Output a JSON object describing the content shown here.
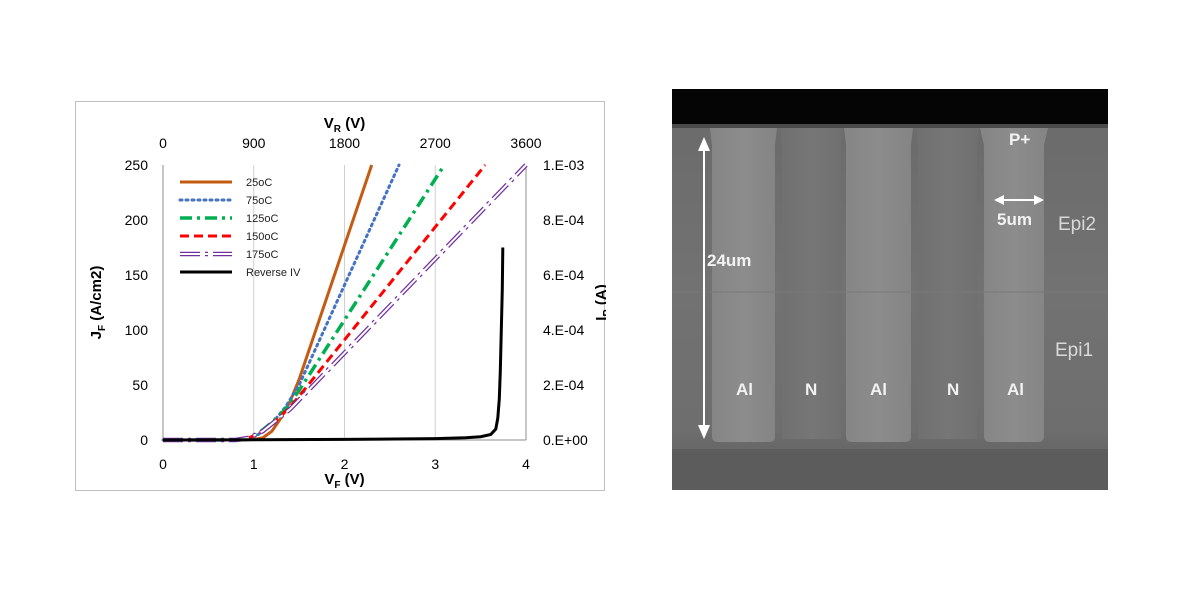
{
  "chart_data": {
    "type": "line",
    "x_primary": {
      "label_main": "V",
      "label_sub": "F",
      "label_unit": " (V)",
      "ticks": [
        "0",
        "1",
        "2",
        "3",
        "4"
      ],
      "range": [
        0,
        4
      ]
    },
    "x_secondary": {
      "label_main": "V",
      "label_sub": "R",
      "label_unit": " (V)",
      "ticks": [
        "0",
        "900",
        "1800",
        "2700",
        "3600"
      ],
      "range": [
        0,
        3600
      ]
    },
    "y_primary": {
      "label_main": "J",
      "label_sub": "F",
      "label_unit": " (A/cm2)",
      "ticks": [
        "0",
        "50",
        "100",
        "150",
        "200",
        "250"
      ],
      "range": [
        0,
        250
      ]
    },
    "y_secondary": {
      "label_main": "I",
      "label_sub": "R",
      "label_unit": " (A)",
      "ticks": [
        "0.E+00",
        "2.E-04",
        "4.E-04",
        "6.E-04",
        "8.E-04",
        "1.E-03"
      ],
      "range": [
        0,
        0.001
      ]
    },
    "grid": "vertical",
    "legend_position": "top-left",
    "series": [
      {
        "name": "25oC",
        "color": "#c55a11",
        "dash": "solid",
        "axis": "forward",
        "points": [
          [
            0,
            0
          ],
          [
            0.9,
            0
          ],
          [
            1.0,
            0.5
          ],
          [
            1.1,
            2
          ],
          [
            1.2,
            8
          ],
          [
            1.3,
            20
          ],
          [
            1.4,
            35
          ],
          [
            1.5,
            55
          ],
          [
            2.3,
            250
          ]
        ]
      },
      {
        "name": "75oC",
        "color": "#4472c4",
        "dash": "dot",
        "axis": "forward",
        "points": [
          [
            0,
            0
          ],
          [
            0.85,
            0
          ],
          [
            0.95,
            1
          ],
          [
            1.05,
            5
          ],
          [
            1.2,
            15
          ],
          [
            1.35,
            30
          ],
          [
            1.5,
            50
          ],
          [
            2.6,
            250
          ]
        ]
      },
      {
        "name": "125oC",
        "color": "#00b050",
        "dash": "dashdot",
        "axis": "forward",
        "points": [
          [
            0,
            0
          ],
          [
            0.85,
            0
          ],
          [
            0.95,
            1.5
          ],
          [
            1.05,
            6
          ],
          [
            1.2,
            16
          ],
          [
            1.35,
            28
          ],
          [
            1.5,
            45
          ],
          [
            3.1,
            250
          ]
        ]
      },
      {
        "name": "150oC",
        "color": "#ff0000",
        "dash": "dash",
        "axis": "forward",
        "points": [
          [
            0,
            0
          ],
          [
            0.8,
            0
          ],
          [
            0.95,
            2
          ],
          [
            1.1,
            8
          ],
          [
            1.25,
            18
          ],
          [
            1.4,
            30
          ],
          [
            1.55,
            45
          ],
          [
            3.55,
            250
          ]
        ]
      },
      {
        "name": "175oC",
        "color": "#7030a0",
        "dash": "hollow",
        "axis": "forward",
        "points": [
          [
            0,
            0
          ],
          [
            0.8,
            0
          ],
          [
            0.95,
            2
          ],
          [
            1.1,
            8
          ],
          [
            1.25,
            18
          ],
          [
            1.4,
            28
          ],
          [
            1.6,
            45
          ],
          [
            4.0,
            250
          ]
        ]
      },
      {
        "name": "Reverse IV",
        "color": "#000000",
        "dash": "solid",
        "axis": "reverse",
        "points": [
          [
            0,
            0
          ],
          [
            1800,
            2e-06
          ],
          [
            2700,
            5e-06
          ],
          [
            3000,
            8e-06
          ],
          [
            3150,
            1.2e-05
          ],
          [
            3250,
            2e-05
          ],
          [
            3300,
            4e-05
          ],
          [
            3320,
            8e-05
          ],
          [
            3335,
            0.00015
          ],
          [
            3345,
            0.00025
          ],
          [
            3355,
            0.0004
          ],
          [
            3365,
            0.00055
          ],
          [
            3370,
            0.0007
          ]
        ]
      }
    ]
  },
  "sem": {
    "labels": {
      "p_plus": "P+",
      "width": "5um",
      "depth": "24um",
      "epi2": "Epi2",
      "epi1": "Epi1",
      "al1": "Al",
      "n1": "N",
      "al2": "Al",
      "n2": "N",
      "al3": "Al"
    }
  }
}
